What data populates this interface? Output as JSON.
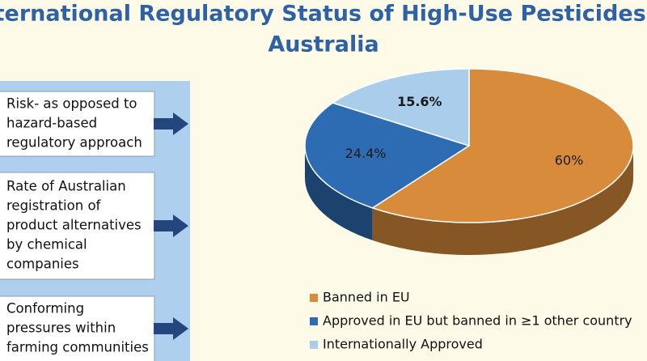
{
  "chart_data": {
    "type": "pie",
    "title_lines": [
      "International Regulatory Status of High-Use Pesticides in",
      "Australia"
    ],
    "categories": [
      "Banned in EU",
      "Approved in EU but banned in ≥1 other country",
      "Internationally Approved"
    ],
    "values": [
      60,
      24.4,
      15.6
    ],
    "value_labels": [
      "60%",
      "24.4%",
      "15.6%"
    ],
    "colors": [
      "#d98b3c",
      "#2d6cb2",
      "#a9cdeb"
    ]
  },
  "factors": [
    {
      "lines": [
        "Risk- as opposed to",
        "hazard-based",
        "regulatory approach"
      ]
    },
    {
      "lines": [
        "Rate of Australian",
        "registration of",
        "product alternatives",
        "by chemical",
        "companies"
      ]
    },
    {
      "lines": [
        "Conforming",
        "pressures within",
        "farming communities"
      ]
    }
  ]
}
